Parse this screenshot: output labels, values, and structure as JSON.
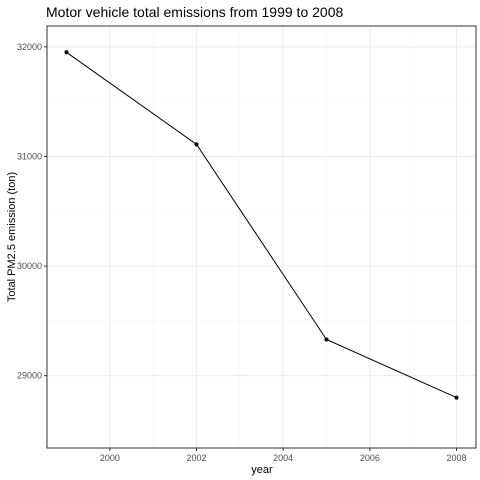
{
  "chart_data": {
    "type": "line",
    "title": "Motor vehicle total emissions from 1999 to 2008",
    "xlabel": "year",
    "ylabel": "Total PM2.5 emission (ton)",
    "x": [
      1999,
      2002,
      2005,
      2008
    ],
    "series": [
      {
        "values": [
          31950,
          31110,
          29330,
          28800
        ]
      }
    ],
    "xlim": [
      1998.55,
      2008.45
    ],
    "ylim": [
      28340,
      32190
    ],
    "xticks": [
      2000,
      2002,
      2004,
      2006,
      2008
    ],
    "yticks": [
      29000,
      30000,
      31000,
      32000
    ],
    "xtick_labels": [
      "2000",
      "2002",
      "2004",
      "2006",
      "2008"
    ],
    "ytick_labels": [
      "29000",
      "30000",
      "31000",
      "32000"
    ],
    "grid": true,
    "legend": "none",
    "colors": {
      "line": "#000000",
      "point": "#000000",
      "grid": "#ebebeb",
      "panel_border": "#333333"
    }
  }
}
